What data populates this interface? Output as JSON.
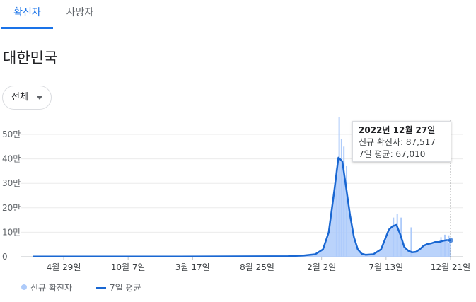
{
  "tabs": [
    {
      "label": "확진자",
      "active": true
    },
    {
      "label": "사망자",
      "active": false
    }
  ],
  "region": "대한민국",
  "range_select": {
    "value": "전체"
  },
  "tooltip": {
    "date": "2022년 12월 27일",
    "new_cases": "신규 확진자: 87,517",
    "avg": "7일 평균: 67,010"
  },
  "legend": [
    {
      "label": "신규 확진자",
      "color": "#aecbfa"
    },
    {
      "label": "7일 평균",
      "color": "#1967d2"
    }
  ],
  "chart_data": {
    "type": "area",
    "title": "",
    "xlabel": "",
    "ylabel": "",
    "y_ticks": [
      {
        "value": 0,
        "label": "0"
      },
      {
        "value": 10,
        "label": "10만"
      },
      {
        "value": 20,
        "label": "20만"
      },
      {
        "value": 30,
        "label": "30만"
      },
      {
        "value": 40,
        "label": "40만"
      },
      {
        "value": 50,
        "label": "50만"
      }
    ],
    "ylim": [
      0,
      57
    ],
    "x_ticks": [
      "4월 29일",
      "10월 7일",
      "3월 17일",
      "8월 25일",
      "2월 2일",
      "7월 13일",
      "12월 21일"
    ],
    "x_tick_positions": [
      0.0,
      0.1666,
      0.3332,
      0.4998,
      0.6664,
      0.833,
      0.9996
    ],
    "x_range": [
      -0.08,
      1.0
    ],
    "grid": true,
    "legend_placement": "bottom-left",
    "colors": {
      "bars": "#aecbfa",
      "line": "#1967d2"
    },
    "series": [
      {
        "name": "7일 평균",
        "x": [
          -0.08,
          0.3,
          0.58,
          0.62,
          0.65,
          0.67,
          0.685,
          0.7,
          0.71,
          0.72,
          0.73,
          0.74,
          0.75,
          0.76,
          0.77,
          0.78,
          0.8,
          0.82,
          0.83,
          0.84,
          0.85,
          0.86,
          0.87,
          0.88,
          0.89,
          0.9,
          0.91,
          0.92,
          0.93,
          0.94,
          0.95,
          0.96,
          0.97,
          0.98,
          0.99,
          1.0
        ],
        "values": [
          0.1,
          0.1,
          0.2,
          0.5,
          1.0,
          3,
          10,
          28,
          40.5,
          39,
          28,
          17,
          8,
          3,
          1.2,
          0.8,
          1.0,
          3,
          7,
          11,
          12.5,
          13,
          9,
          4,
          2.5,
          1.8,
          2.0,
          3,
          4.5,
          5.2,
          5.5,
          6,
          6,
          6.5,
          6.8,
          6.7
        ]
      },
      {
        "name": "신규 확진자",
        "x": [
          0.705,
          0.712,
          0.718,
          0.724,
          0.731,
          0.852,
          0.862,
          0.872,
          0.898,
          0.975,
          0.985,
          0.995
        ],
        "values": [
          36,
          57,
          48,
          45,
          37,
          16,
          17.5,
          16,
          12,
          8,
          9,
          8.75
        ]
      }
    ],
    "highlight": {
      "x": 1.0,
      "y": 6.7
    }
  }
}
